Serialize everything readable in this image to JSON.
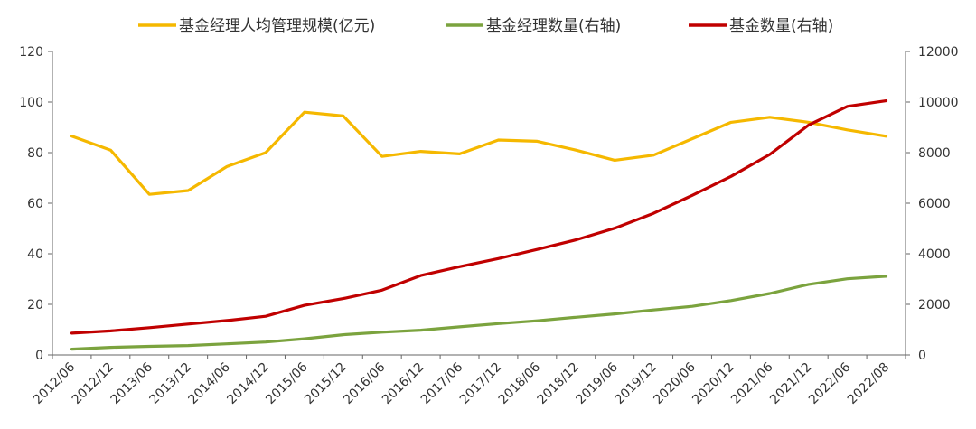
{
  "chart_data": {
    "type": "line",
    "title": "",
    "xlabel": "",
    "ylabel": "",
    "x": [
      "2012/06",
      "2012/12",
      "2013/06",
      "2013/12",
      "2014/06",
      "2014/12",
      "2015/06",
      "2015/12",
      "2016/06",
      "2016/12",
      "2017/06",
      "2017/12",
      "2018/06",
      "2018/12",
      "2019/06",
      "2019/12",
      "2020/06",
      "2020/12",
      "2021/06",
      "2021/12",
      "2022/06",
      "2022/08"
    ],
    "y_left": {
      "lim": [
        0,
        120
      ],
      "ticks": [
        "0",
        "20",
        "40",
        "60",
        "80",
        "100",
        "120"
      ]
    },
    "y_right": {
      "lim": [
        0,
        12000
      ],
      "ticks": [
        "0",
        "2000",
        "4000",
        "6000",
        "8000",
        "10000",
        "12000"
      ]
    },
    "legend_position": "top",
    "grid": false,
    "series": [
      {
        "name": "基金经理人均管理规模(亿元)",
        "axis": "left",
        "color": "#F5B800",
        "values": [
          86.5,
          81,
          63.5,
          65,
          74.5,
          80,
          96,
          94.5,
          78.5,
          80.5,
          79.5,
          85,
          84.5,
          81,
          77,
          79,
          85.5,
          92,
          94,
          92,
          89,
          86.5
        ]
      },
      {
        "name": "基金经理数量(右轴)",
        "axis": "right",
        "color": "#7BA33E",
        "values": [
          230,
          300,
          340,
          370,
          440,
          510,
          640,
          800,
          900,
          980,
          1110,
          1240,
          1350,
          1490,
          1620,
          1780,
          1920,
          2150,
          2430,
          2790,
          3010,
          3110
        ]
      },
      {
        "name": "基金数量(右轴)",
        "axis": "right",
        "color": "#C00000",
        "values": [
          860,
          950,
          1080,
          1220,
          1360,
          1530,
          1960,
          2230,
          2560,
          3140,
          3490,
          3810,
          4170,
          4550,
          5010,
          5600,
          6310,
          7060,
          7930,
          9090,
          9830,
          10050
        ]
      }
    ]
  }
}
